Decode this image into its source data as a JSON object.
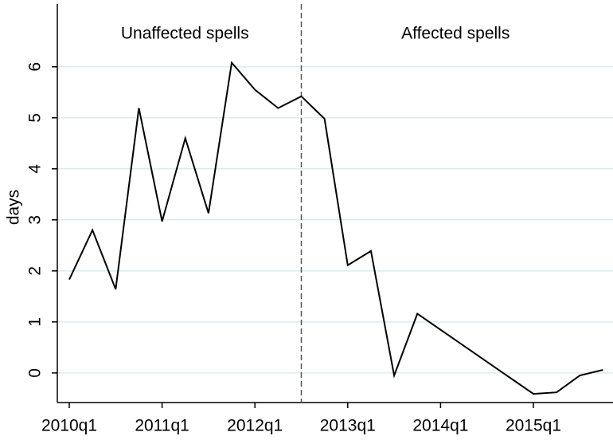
{
  "chart_data": {
    "type": "line",
    "y_label": "days",
    "x": [
      "2010q1",
      "2010q2",
      "2010q3",
      "2010q4",
      "2011q1",
      "2011q2",
      "2011q3",
      "2011q4",
      "2012q1",
      "2012q2",
      "2012q3",
      "2012q4",
      "2013q1",
      "2013q2",
      "2013q3",
      "2013q4",
      "2015q1",
      "2015q2",
      "2015q3",
      "2015q4"
    ],
    "values": [
      1.83,
      2.8,
      1.64,
      5.19,
      2.97,
      4.6,
      3.13,
      6.08,
      5.55,
      5.19,
      5.42,
      4.98,
      2.11,
      2.39,
      -0.05,
      1.16,
      -0.41,
      -0.38,
      -0.05,
      0.06
    ],
    "color": "#000000",
    "ylim": [
      -0.58,
      7.23
    ],
    "yticks": [
      0,
      1,
      2,
      3,
      4,
      5,
      6
    ],
    "grid": true,
    "xticks": [
      "2010q1",
      "2011q1",
      "2012q1",
      "2013q1",
      "2014q1",
      "2015q1"
    ],
    "divider": "2012q3",
    "annotations": [
      "Unaffected spells",
      "Affected spells"
    ]
  }
}
